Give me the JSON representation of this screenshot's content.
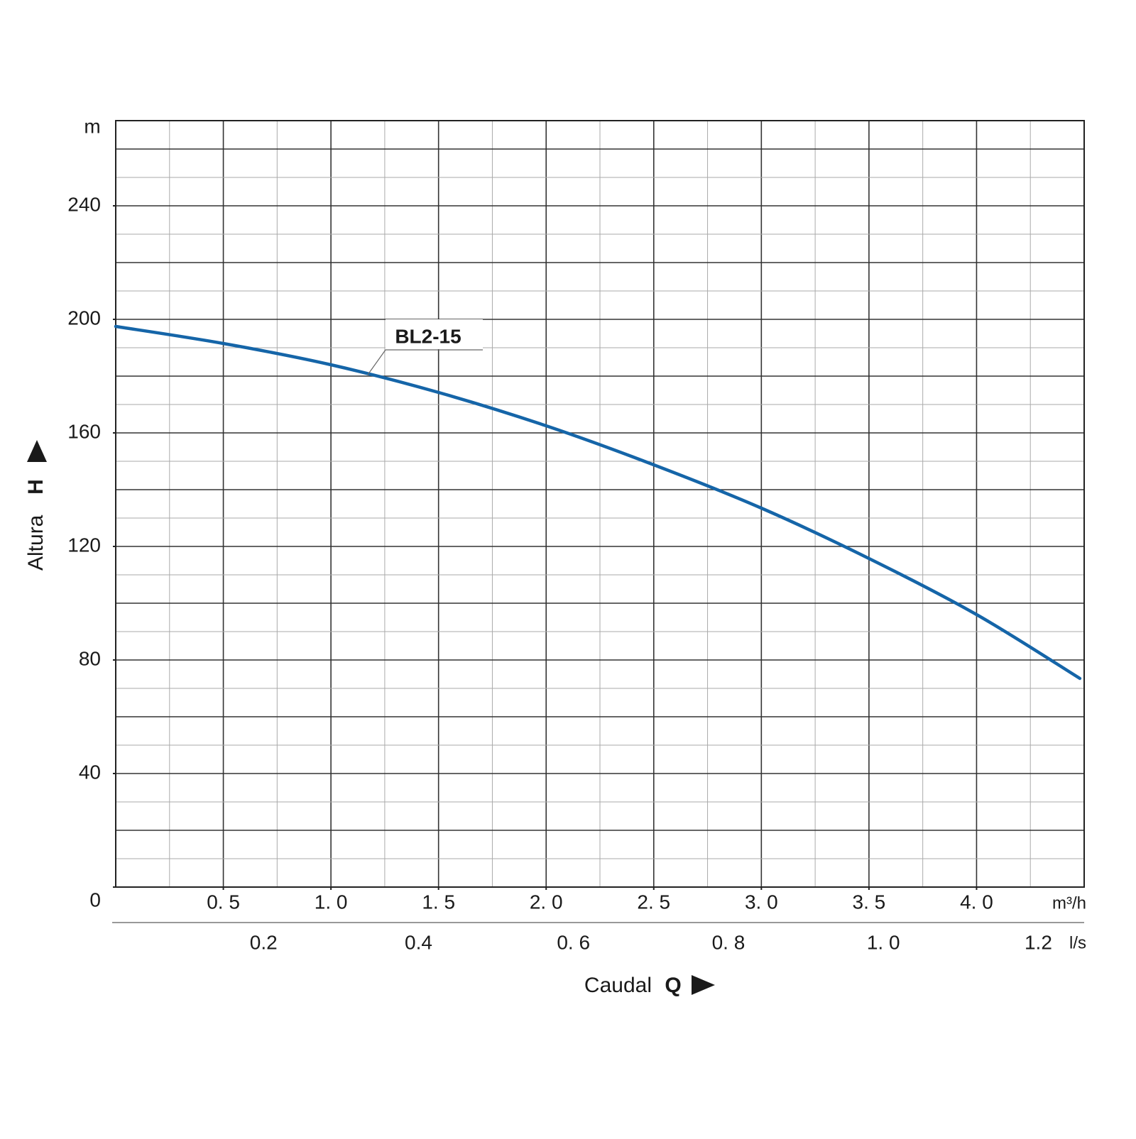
{
  "chart_data": {
    "type": "line",
    "x_label": "Caudal",
    "x_symbol": "Q",
    "y_label": "Altura",
    "y_symbol": "H",
    "x_unit": "m³/h",
    "x2_unit": "l/s",
    "y_unit": "m",
    "xlim": [
      0,
      4.5
    ],
    "ylim": [
      0,
      270
    ],
    "x2lim": [
      0,
      1.25
    ],
    "xticks": [
      {
        "value": 0.5,
        "label": "0. 5"
      },
      {
        "value": 1.0,
        "label": "1. 0"
      },
      {
        "value": 1.5,
        "label": "1. 5"
      },
      {
        "value": 2.0,
        "label": "2. 0"
      },
      {
        "value": 2.5,
        "label": "2. 5"
      },
      {
        "value": 3.0,
        "label": "3. 0"
      },
      {
        "value": 3.5,
        "label": "3. 5"
      },
      {
        "value": 4.0,
        "label": "4. 0"
      }
    ],
    "x2ticks": [
      0.2,
      0.4,
      {
        "value": 0.6,
        "label": "0. 6"
      },
      {
        "value": 0.8,
        "label": "0. 8"
      },
      {
        "value": 1.0,
        "label": "1. 0"
      },
      1.2
    ],
    "yticks": [
      0,
      40,
      80,
      120,
      160,
      200,
      240
    ],
    "xgrid_major": [
      0.5,
      1.0,
      1.5,
      2.0,
      2.5,
      3.0,
      3.5,
      4.0
    ],
    "xgrid_minor": [
      0.25,
      0.75,
      1.25,
      1.75,
      2.25,
      2.75,
      3.25,
      3.75,
      4.25
    ],
    "ygrid_major": [
      20,
      40,
      60,
      80,
      100,
      120,
      140,
      160,
      180,
      200,
      220,
      240,
      260
    ],
    "ygrid_minor": [
      10,
      30,
      50,
      70,
      90,
      110,
      130,
      150,
      170,
      190,
      210,
      230,
      250
    ],
    "series": [
      {
        "name": "BL2-15",
        "color": "#1565a8",
        "x": [
          0,
          0.5,
          1.0,
          1.5,
          2.0,
          2.5,
          3.0,
          3.5,
          4.0,
          4.48
        ],
        "values": [
          197.5,
          191.5,
          184,
          174.25,
          162.5,
          148.75,
          133.5,
          115.75,
          96,
          73.5
        ]
      }
    ]
  }
}
